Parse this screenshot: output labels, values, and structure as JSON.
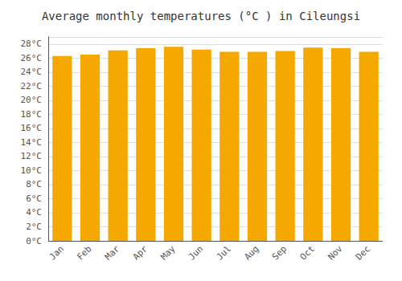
{
  "chart_data": {
    "type": "bar",
    "title": "Average monthly temperatures (°C ) in Cileungsi",
    "categories": [
      "Jan",
      "Feb",
      "Mar",
      "Apr",
      "May",
      "Jun",
      "Jul",
      "Aug",
      "Sep",
      "Oct",
      "Nov",
      "Dec"
    ],
    "values": [
      26.3,
      26.5,
      27.1,
      27.4,
      27.6,
      27.2,
      26.9,
      26.9,
      27.0,
      27.5,
      27.4,
      26.9
    ],
    "color": "#F5A800",
    "ylim": [
      0,
      29
    ],
    "yticks": [
      {
        "value": 0,
        "label": "0°C"
      },
      {
        "value": 2,
        "label": "2°C"
      },
      {
        "value": 4,
        "label": "4°C"
      },
      {
        "value": 6,
        "label": "6°C"
      },
      {
        "value": 8,
        "label": "8°C"
      },
      {
        "value": 10,
        "label": "10°C"
      },
      {
        "value": 12,
        "label": "12°C"
      },
      {
        "value": 14,
        "label": "14°C"
      },
      {
        "value": 16,
        "label": "16°C"
      },
      {
        "value": 18,
        "label": "18°C"
      },
      {
        "value": 20,
        "label": "20°C"
      },
      {
        "value": 22,
        "label": "22°C"
      },
      {
        "value": 24,
        "label": "24°C"
      },
      {
        "value": 26,
        "label": "26°C"
      },
      {
        "value": 28,
        "label": "28°C"
      }
    ],
    "grid": true
  }
}
